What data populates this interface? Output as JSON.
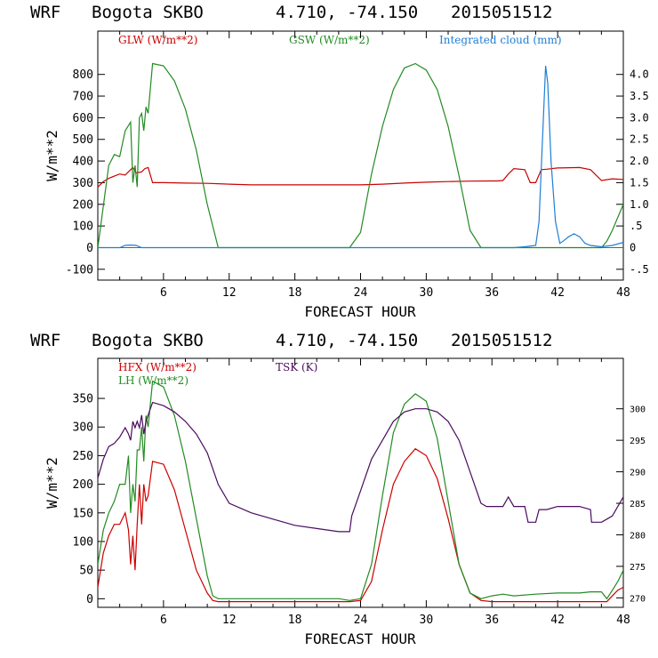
{
  "chart_data": [
    {
      "type": "line",
      "title_parts": [
        "WRF",
        "Bogota SKBO",
        "4.710, -74.150",
        "2015051512"
      ],
      "xlabel": "FORECAST HOUR",
      "ylabel": "W/m**2",
      "xlim": [
        0,
        48
      ],
      "ylim": [
        -150,
        1000
      ],
      "y2lim": [
        -0.75,
        5.0
      ],
      "x_ticks": [
        6,
        12,
        18,
        24,
        30,
        36,
        42,
        48
      ],
      "y_ticks": [
        -100,
        0,
        100,
        200,
        300,
        400,
        500,
        600,
        700,
        800
      ],
      "y2_ticks": [
        "-.5",
        "0",
        ".5",
        "1.0",
        "1.5",
        "2.0",
        "2.5",
        "3.0",
        "3.5",
        "4.0"
      ],
      "y2_tick_values": [
        -0.5,
        0,
        0.5,
        1.0,
        1.5,
        2.0,
        2.5,
        3.0,
        3.5,
        4.0
      ],
      "series": [
        {
          "name": "GLW (W/m**2)",
          "color": "#cc0000",
          "axis": "left",
          "x": [
            0,
            0.5,
            1,
            1.5,
            2,
            2.5,
            3,
            3.2,
            3.5,
            4,
            4.3,
            4.6,
            5,
            6,
            8,
            10,
            12,
            14,
            16,
            18,
            20,
            22,
            24,
            26,
            28,
            30,
            32,
            34,
            36,
            36.5,
            37,
            37.5,
            38,
            39,
            39.5,
            40,
            40.5,
            41,
            42,
            44,
            45,
            46,
            47,
            48
          ],
          "values": [
            280,
            305,
            320,
            330,
            340,
            335,
            360,
            370,
            345,
            350,
            365,
            370,
            300,
            300,
            298,
            297,
            293,
            290,
            290,
            290,
            290,
            290,
            290,
            293,
            298,
            302,
            305,
            307,
            308,
            308,
            310,
            340,
            365,
            360,
            300,
            300,
            360,
            362,
            368,
            370,
            360,
            310,
            318,
            315
          ]
        },
        {
          "name": "GSW (W/m**2)",
          "color": "#228b22",
          "axis": "left",
          "x": [
            0,
            1,
            1.5,
            2,
            2.5,
            3,
            3.2,
            3.4,
            3.6,
            3.8,
            4,
            4.2,
            4.4,
            4.6,
            5,
            6,
            7,
            8,
            9,
            10,
            11,
            12,
            23,
            24,
            25,
            26,
            27,
            28,
            29,
            30,
            31,
            32,
            33,
            34,
            35,
            36,
            40,
            46,
            46.5,
            47,
            47.5,
            48
          ],
          "values": [
            0,
            380,
            430,
            420,
            540,
            580,
            300,
            380,
            280,
            600,
            620,
            540,
            650,
            620,
            850,
            840,
            770,
            640,
            450,
            200,
            0,
            0,
            0,
            70,
            340,
            560,
            730,
            830,
            850,
            820,
            730,
            560,
            330,
            80,
            0,
            0,
            0,
            0,
            30,
            80,
            140,
            200
          ]
        },
        {
          "name": "Integrated cloud (mm)",
          "color": "#1e7fd4",
          "axis": "right",
          "x": [
            0,
            1,
            2,
            2.5,
            3,
            3.5,
            4,
            5,
            10,
            20,
            30,
            38,
            39,
            40,
            40.3,
            40.6,
            40.9,
            41.1,
            41.4,
            41.8,
            42.2,
            42.5,
            43,
            43.5,
            44,
            44.5,
            45,
            46,
            47,
            48
          ],
          "values": [
            0,
            0,
            0,
            0.05,
            0.06,
            0.05,
            0,
            0,
            0,
            0,
            0,
            0,
            0.02,
            0.05,
            0.6,
            2.4,
            4.2,
            3.8,
            2.0,
            0.6,
            0.1,
            0.15,
            0.25,
            0.32,
            0.25,
            0.1,
            0.05,
            0.02,
            0.05,
            0.12
          ]
        }
      ],
      "legend": [
        "GLW (W/m**2)",
        "GSW (W/m**2)",
        "Integrated cloud (mm)"
      ]
    },
    {
      "type": "line",
      "title_parts": [
        "WRF",
        "Bogota SKBO",
        "4.710, -74.150",
        "2015051512"
      ],
      "xlabel": "FORECAST HOUR",
      "ylabel": "W/m**2",
      "xlim": [
        0,
        48
      ],
      "ylim": [
        -15,
        420
      ],
      "y2lim": [
        268.5,
        308
      ],
      "x_ticks": [
        6,
        12,
        18,
        24,
        30,
        36,
        42,
        48
      ],
      "y_ticks": [
        0,
        50,
        100,
        150,
        200,
        250,
        300,
        350
      ],
      "y2_ticks": [
        "270",
        "275",
        "280",
        "285",
        "290",
        "295",
        "300"
      ],
      "y2_tick_values": [
        270,
        275,
        280,
        285,
        290,
        295,
        300
      ],
      "series": [
        {
          "name": "HFX (W/m**2)",
          "color": "#cc0000",
          "axis": "left",
          "x": [
            0,
            0.5,
            1,
            1.5,
            2,
            2.5,
            2.8,
            3,
            3.2,
            3.4,
            3.6,
            3.8,
            4,
            4.2,
            4.4,
            4.6,
            5,
            6,
            7,
            8,
            9,
            10,
            10.5,
            11,
            12,
            14,
            16,
            18,
            20,
            22,
            23,
            24,
            25,
            26,
            27,
            28,
            29,
            30,
            31,
            32,
            33,
            34,
            35,
            36,
            37,
            38,
            40,
            42,
            44,
            46,
            46.5,
            47,
            47.5,
            48
          ],
          "values": [
            20,
            80,
            110,
            130,
            130,
            150,
            120,
            60,
            110,
            50,
            130,
            200,
            130,
            200,
            170,
            180,
            240,
            235,
            190,
            120,
            50,
            10,
            -3,
            -5,
            -5,
            -5,
            -5,
            -5,
            -5,
            -5,
            -5,
            -3,
            30,
            120,
            200,
            240,
            262,
            250,
            210,
            140,
            60,
            10,
            -3,
            -5,
            -5,
            -5,
            -5,
            -5,
            -5,
            -5,
            -5,
            5,
            15,
            20
          ]
        },
        {
          "name": "LH (W/m**2)",
          "color": "#228b22",
          "axis": "left",
          "x": [
            0,
            0.5,
            1,
            1.5,
            2,
            2.5,
            2.8,
            3,
            3.2,
            3.4,
            3.6,
            3.8,
            4,
            4.2,
            4.4,
            4.6,
            5,
            6,
            7,
            8,
            9,
            10,
            10.5,
            11,
            12,
            14,
            16,
            18,
            20,
            22,
            23,
            24,
            25,
            26,
            27,
            28,
            29,
            30,
            31,
            32,
            33,
            34,
            35,
            36,
            37,
            38,
            40,
            42,
            44,
            45,
            46,
            46.5,
            47,
            47.5,
            48
          ],
          "values": [
            60,
            120,
            150,
            170,
            200,
            200,
            250,
            150,
            200,
            170,
            260,
            260,
            300,
            240,
            320,
            300,
            380,
            370,
            320,
            240,
            140,
            40,
            5,
            0,
            0,
            0,
            0,
            0,
            0,
            0,
            -3,
            0,
            60,
            180,
            290,
            340,
            358,
            345,
            280,
            170,
            60,
            10,
            0,
            5,
            8,
            5,
            8,
            10,
            10,
            12,
            12,
            0,
            15,
            30,
            50
          ]
        },
        {
          "name": "TSK (K)",
          "color": "#4b0b5e",
          "axis": "right",
          "x": [
            0,
            0.5,
            1,
            1.5,
            2,
            2.5,
            2.8,
            3,
            3.2,
            3.4,
            3.6,
            3.8,
            4,
            4.2,
            4.4,
            4.6,
            5,
            6,
            7,
            8,
            9,
            10,
            11,
            12,
            14,
            16,
            18,
            20,
            22,
            23,
            23.2,
            24,
            25,
            26,
            27,
            28,
            29,
            30,
            31,
            32,
            33,
            34,
            35,
            35.5,
            36,
            37,
            37.5,
            38,
            39,
            39.3,
            40,
            40.3,
            41,
            42,
            44,
            45,
            45.1,
            46,
            46.5,
            47,
            47.5,
            48
          ],
          "values": [
            289,
            292,
            294,
            294.5,
            295.5,
            297,
            296,
            295,
            298,
            297,
            298,
            297,
            299,
            296,
            298,
            299,
            301,
            300.5,
            299.5,
            298,
            296,
            293,
            288,
            285,
            283.5,
            282.5,
            281.5,
            281,
            280.5,
            280.5,
            283,
            287,
            292,
            295,
            298,
            299.5,
            300,
            300,
            299.5,
            298,
            295,
            290,
            285,
            284.5,
            284.5,
            284.5,
            286,
            284.5,
            284.5,
            282,
            282,
            284,
            284,
            284.5,
            284.5,
            284,
            282,
            282,
            282.5,
            283,
            284.5,
            286
          ]
        }
      ],
      "legend": [
        "HFX (W/m**2)",
        "LH (W/m**2)",
        "TSK (K)"
      ]
    }
  ]
}
